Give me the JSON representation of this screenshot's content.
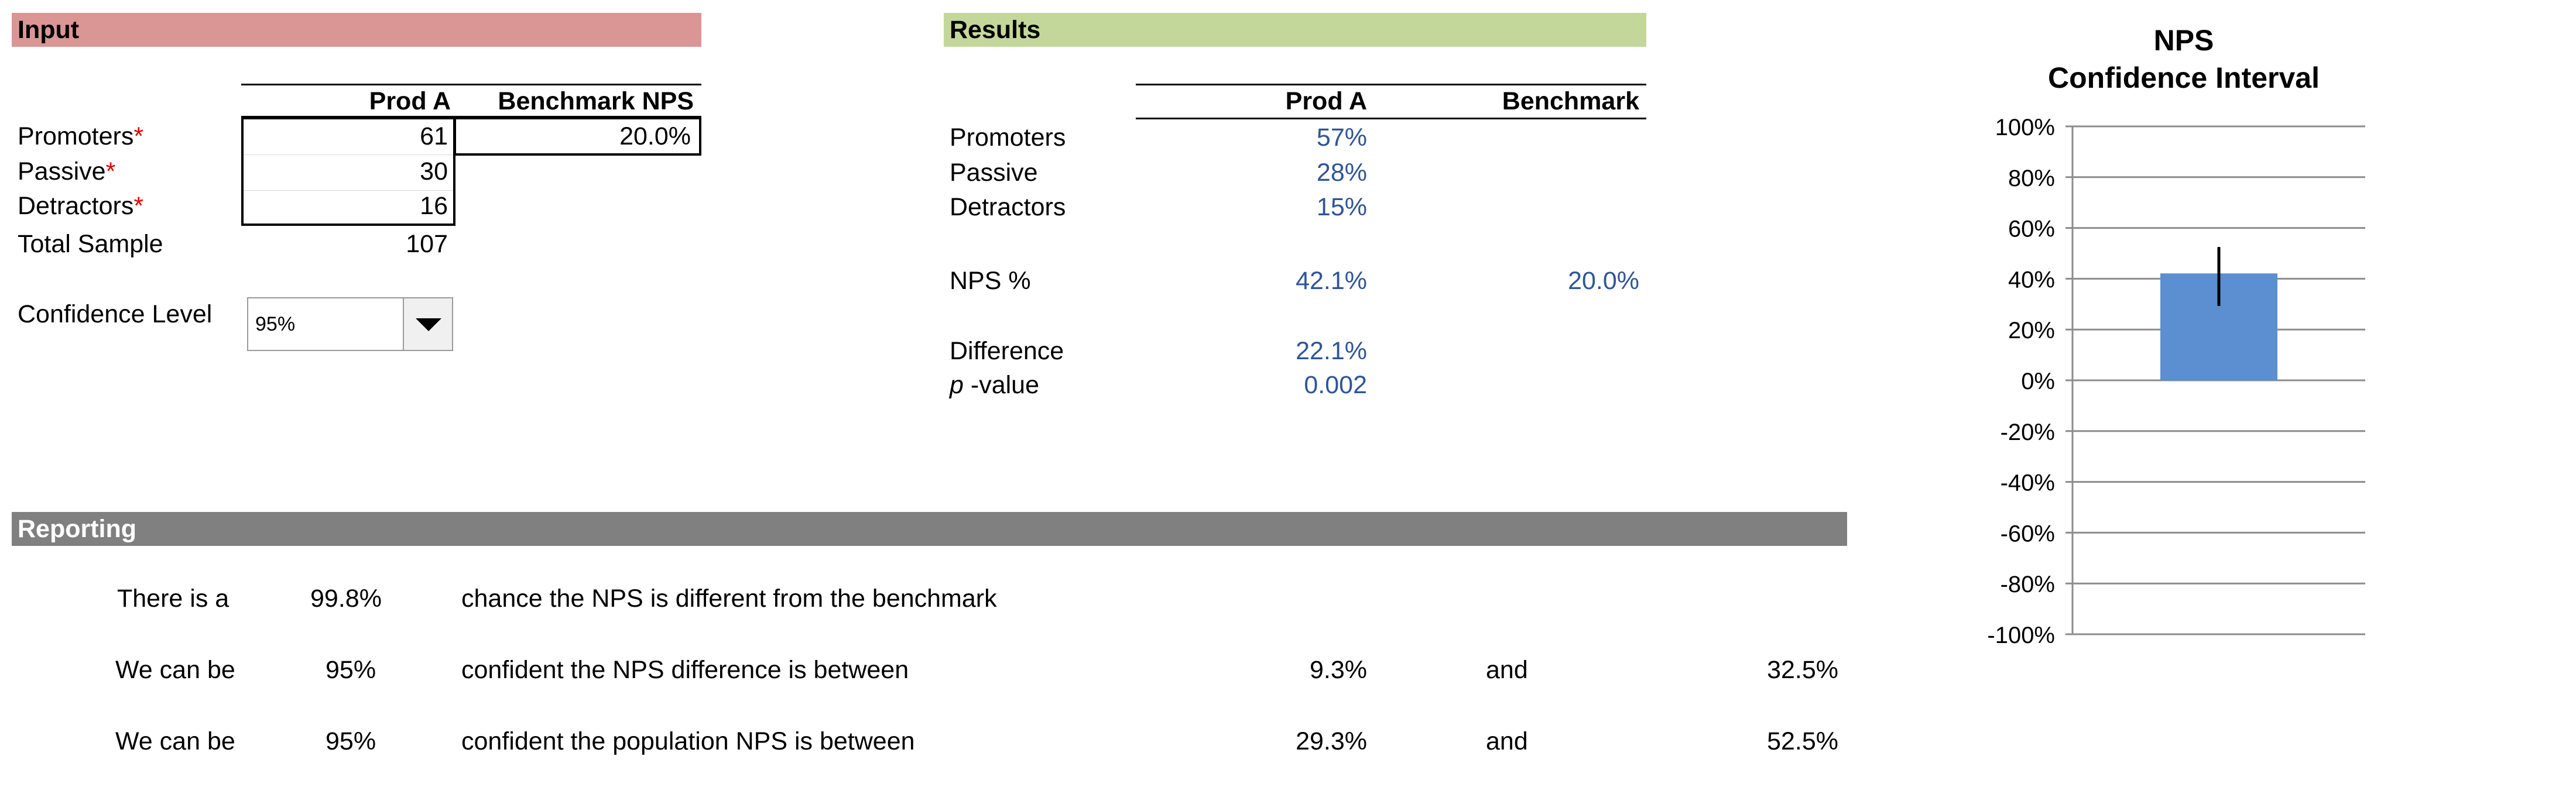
{
  "input": {
    "header": "Input",
    "col_prod": "Prod A",
    "col_bench": "Benchmark NPS",
    "rows": [
      {
        "label": "Promoters",
        "star": "*",
        "value": "61"
      },
      {
        "label": "Passive",
        "star": "*",
        "value": "30"
      },
      {
        "label": "Detractors",
        "star": "*",
        "value": "16"
      }
    ],
    "benchmark_value": "20.0%",
    "total_label": "Total Sample",
    "total_value": "107",
    "confidence_label": "Confidence Level",
    "confidence_value": "95%"
  },
  "results": {
    "header": "Results",
    "col_prod": "Prod A",
    "col_bench": "Benchmark",
    "rows": [
      {
        "label": "Promoters",
        "value": "57%"
      },
      {
        "label": "Passive",
        "value": "28%"
      },
      {
        "label": "Detractors",
        "value": "15%"
      }
    ],
    "nps_label": "NPS %",
    "nps_prod": "42.1%",
    "nps_bench": "20.0%",
    "difference_label": "Difference",
    "difference_value": "22.1%",
    "pvalue_p": "p",
    "pvalue_rest": " -value",
    "pvalue_value": "0.002"
  },
  "reporting": {
    "header": "Reporting",
    "line1": {
      "prefix": "There is a",
      "value": "99.8%",
      "text": "chance the NPS is different from the benchmark"
    },
    "line2": {
      "prefix": "We can be",
      "value": "95%",
      "text": "confident the NPS difference is between",
      "low": "9.3%",
      "and": "and",
      "high": "32.5%"
    },
    "line3": {
      "prefix": "We can be",
      "value": "95%",
      "text": "confident the population NPS is between",
      "low": "29.3%",
      "and": "and",
      "high": "52.5%"
    }
  },
  "colors": {
    "input_header": "#da9694",
    "results_header": "#c4d79b",
    "reporting_header": "#808080",
    "value_blue": "#2f5597",
    "bar_fill": "#5b8fd1"
  },
  "chart_data": {
    "type": "bar",
    "title": "NPS",
    "subtitle": "Confidence Interval",
    "categories": [
      ""
    ],
    "values": [
      0.421
    ],
    "error_low": [
      0.293
    ],
    "error_high": [
      0.525
    ],
    "ylim": [
      -1,
      1
    ],
    "yticks": [
      1,
      0.8,
      0.6,
      0.4,
      0.2,
      0,
      -0.2,
      -0.4,
      -0.6,
      -0.8,
      -1
    ],
    "ytick_labels": [
      "100%",
      "80%",
      "60%",
      "40%",
      "20%",
      "0%",
      "-20%",
      "-40%",
      "-60%",
      "-80%",
      "-100%"
    ],
    "grid": true
  }
}
